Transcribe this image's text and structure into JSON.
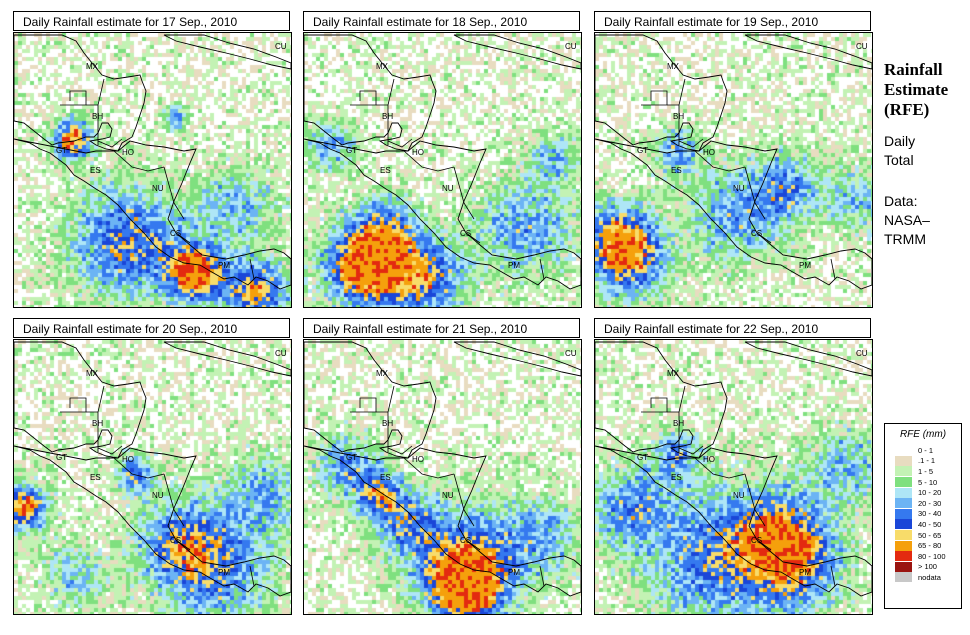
{
  "panels": [
    {
      "title": "Daily Rainfall estimate for  17 Sep., 2010",
      "seed": 17
    },
    {
      "title": "Daily Rainfall estimate for  18 Sep., 2010",
      "seed": 18
    },
    {
      "title": "Daily Rainfall estimate for  19 Sep., 2010",
      "seed": 19
    },
    {
      "title": "Daily Rainfall estimate for  20 Sep., 2010",
      "seed": 20
    },
    {
      "title": "Daily Rainfall estimate for  21 Sep., 2010",
      "seed": 21
    },
    {
      "title": "Daily Rainfall estimate for  22 Sep., 2010",
      "seed": 22
    }
  ],
  "country_labels": [
    "CU",
    "MX",
    "BH",
    "GT",
    "HO",
    "ES",
    "NU",
    "CS",
    "PM"
  ],
  "side": {
    "title_line1": "Rainfall",
    "title_line2": "Estimate",
    "title_line3": "(RFE)",
    "daily_line1": "Daily",
    "daily_line2": "Total",
    "data_line1": "Data:",
    "data_line2": "NASA–",
    "data_line3": "TRMM"
  },
  "legend": {
    "title": "RFE (mm)",
    "entries": [
      {
        "label": "0 - 1",
        "color": "#ffffff"
      },
      {
        "label": ".1 - 1",
        "color": "#e8dcc0"
      },
      {
        "label": "1 - 5",
        "color": "#c3f2b4"
      },
      {
        "label": "5 - 10",
        "color": "#7fe07f"
      },
      {
        "label": "10 - 20",
        "color": "#aee6f6"
      },
      {
        "label": "20 - 30",
        "color": "#6cb4f4"
      },
      {
        "label": "30 - 40",
        "color": "#3579ef"
      },
      {
        "label": "40 - 50",
        "color": "#1a46d8"
      },
      {
        "label": "50 - 65",
        "color": "#f8dc6a"
      },
      {
        "label": "65 - 80",
        "color": "#f5a00c"
      },
      {
        "label": "80 - 100",
        "color": "#e32a10"
      },
      {
        "label": "> 100",
        "color": "#9a1410"
      },
      {
        "label": "nodata",
        "color": "#c8c8c8"
      }
    ]
  }
}
